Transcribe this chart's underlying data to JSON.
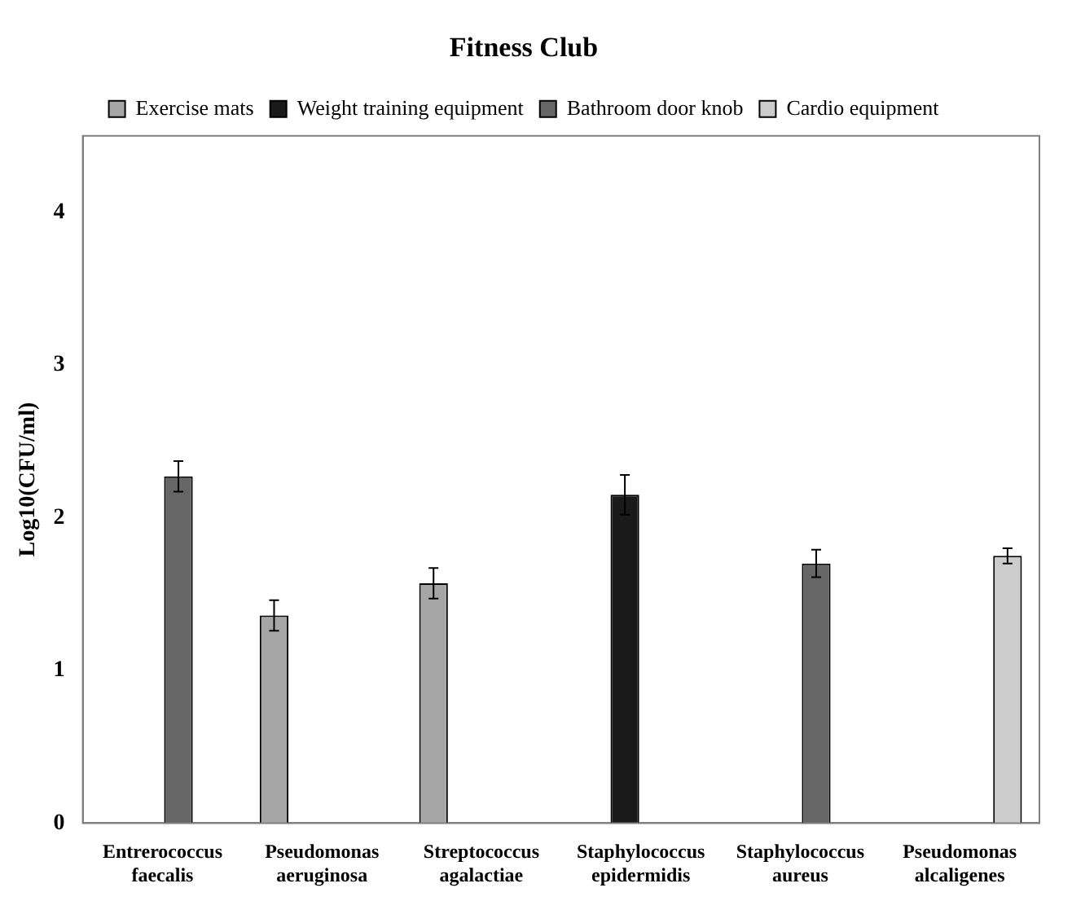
{
  "chart_data": {
    "type": "bar",
    "title": "Fitness Club",
    "ylabel": "Log10(CFU/ml)",
    "categories": [
      "Entrerococcus faecalis",
      "Pseudomonas aeruginosa",
      "Streptococcus agalactiae",
      "Staphylococcus epidermidis",
      "Staphylococcus aureus",
      "Pseudomonas alcaligenes"
    ],
    "series": [
      {
        "name": "Exercise mats",
        "color": "#a6a6a6",
        "values": [
          null,
          1.36,
          1.57,
          null,
          null,
          null
        ],
        "errors": [
          null,
          0.1,
          0.1,
          null,
          null,
          null
        ]
      },
      {
        "name": "Weight training equipment",
        "color": "#1a1a1a",
        "values": [
          null,
          null,
          null,
          2.15,
          null,
          null
        ],
        "errors": [
          null,
          null,
          null,
          0.13,
          null,
          null
        ]
      },
      {
        "name": "Bathroom door knob",
        "color": "#666666",
        "values": [
          2.27,
          null,
          null,
          null,
          1.7,
          null
        ],
        "errors": [
          0.1,
          null,
          null,
          null,
          0.09,
          null
        ]
      },
      {
        "name": "Cardio equipment",
        "color": "#cccccc",
        "values": [
          null,
          null,
          null,
          null,
          null,
          1.75
        ],
        "errors": [
          null,
          null,
          null,
          null,
          null,
          0.05
        ]
      }
    ],
    "ylim": [
      0,
      4.5
    ],
    "yticks": [
      0,
      1,
      2,
      3,
      4
    ],
    "grid": false,
    "legend": "top"
  }
}
